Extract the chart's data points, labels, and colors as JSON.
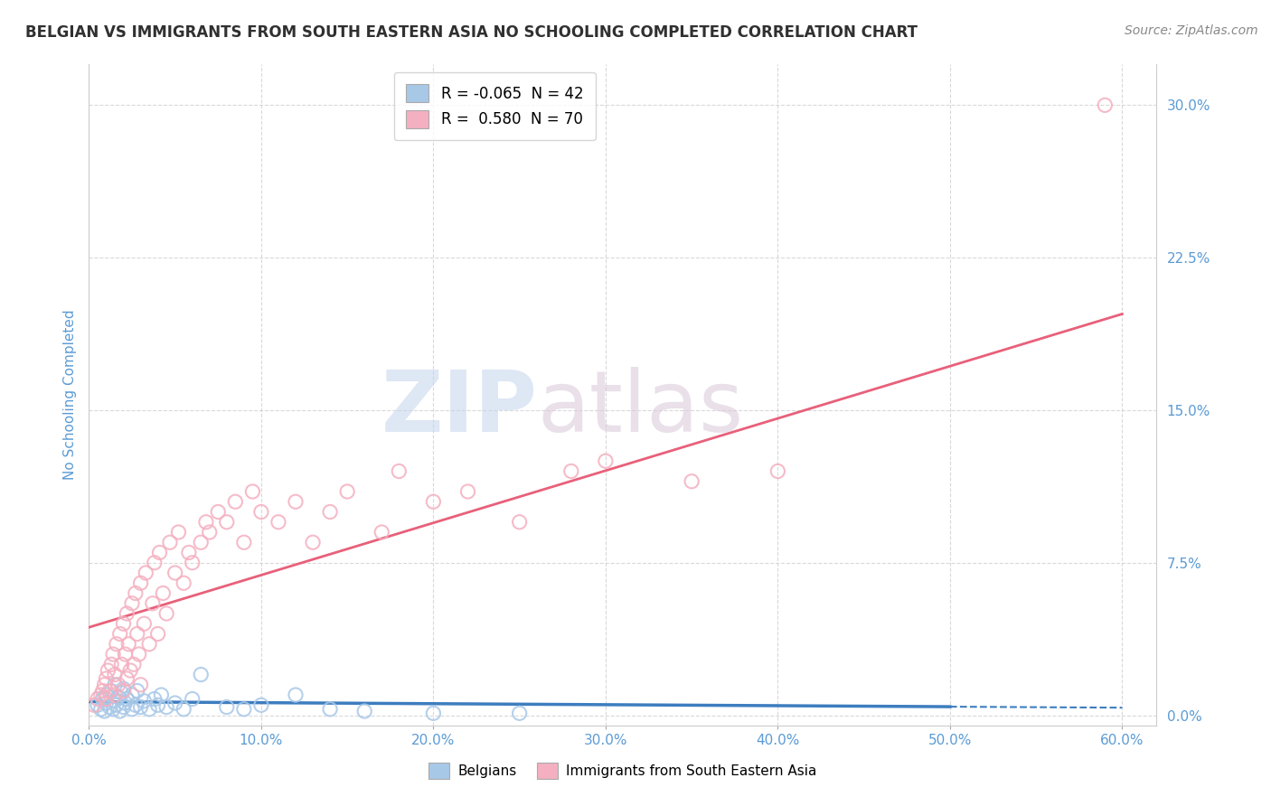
{
  "title": "BELGIAN VS IMMIGRANTS FROM SOUTH EASTERN ASIA NO SCHOOLING COMPLETED CORRELATION CHART",
  "source": "Source: ZipAtlas.com",
  "ylabel": "No Schooling Completed",
  "xlim": [
    0.0,
    0.62
  ],
  "ylim": [
    -0.005,
    0.32
  ],
  "x_ticks": [
    0.0,
    0.1,
    0.2,
    0.3,
    0.4,
    0.5,
    0.6
  ],
  "x_tick_labels": [
    "0.0%",
    "10.0%",
    "20.0%",
    "30.0%",
    "40.0%",
    "50.0%",
    "60.0%"
  ],
  "y_ticks": [
    0.0,
    0.075,
    0.15,
    0.225,
    0.3
  ],
  "y_tick_labels": [
    "0.0%",
    "7.5%",
    "15.0%",
    "22.5%",
    "30.0%"
  ],
  "belgian_color": "#a8c8e8",
  "immigrant_color": "#f4b0c0",
  "belgian_line_color": "#3d7dbf",
  "immigrant_line_color": "#e8607a",
  "legend_R_belgian": "-0.065",
  "legend_N_belgian": "42",
  "legend_R_immigrant": "0.580",
  "legend_N_immigrant": "70",
  "background_color": "#ffffff",
  "grid_color": "#d0d0d0",
  "title_color": "#303030",
  "axis_label_color": "#5b9bd5",
  "tick_label_color": "#5b9bd5",
  "belgian_x": [
    0.005,
    0.007,
    0.008,
    0.009,
    0.01,
    0.01,
    0.012,
    0.013,
    0.014,
    0.015,
    0.015,
    0.016,
    0.017,
    0.018,
    0.019,
    0.02,
    0.02,
    0.021,
    0.022,
    0.025,
    0.025,
    0.027,
    0.028,
    0.03,
    0.032,
    0.035,
    0.038,
    0.04,
    0.042,
    0.045,
    0.05,
    0.055,
    0.06,
    0.065,
    0.08,
    0.09,
    0.1,
    0.12,
    0.14,
    0.16,
    0.2,
    0.25
  ],
  "belgian_y": [
    0.005,
    0.003,
    0.008,
    0.002,
    0.006,
    0.01,
    0.004,
    0.012,
    0.003,
    0.007,
    0.015,
    0.005,
    0.009,
    0.002,
    0.011,
    0.004,
    0.013,
    0.006,
    0.008,
    0.003,
    0.01,
    0.005,
    0.012,
    0.004,
    0.007,
    0.003,
    0.008,
    0.005,
    0.01,
    0.004,
    0.006,
    0.003,
    0.008,
    0.02,
    0.004,
    0.003,
    0.005,
    0.01,
    0.003,
    0.002,
    0.001,
    0.001
  ],
  "immigrant_x": [
    0.003,
    0.005,
    0.007,
    0.008,
    0.009,
    0.01,
    0.01,
    0.011,
    0.012,
    0.013,
    0.014,
    0.015,
    0.015,
    0.016,
    0.017,
    0.018,
    0.019,
    0.02,
    0.02,
    0.021,
    0.022,
    0.022,
    0.023,
    0.024,
    0.025,
    0.026,
    0.027,
    0.028,
    0.029,
    0.03,
    0.03,
    0.032,
    0.033,
    0.035,
    0.037,
    0.038,
    0.04,
    0.041,
    0.043,
    0.045,
    0.047,
    0.05,
    0.052,
    0.055,
    0.058,
    0.06,
    0.065,
    0.068,
    0.07,
    0.075,
    0.08,
    0.085,
    0.09,
    0.095,
    0.1,
    0.11,
    0.12,
    0.13,
    0.14,
    0.15,
    0.17,
    0.18,
    0.2,
    0.22,
    0.25,
    0.28,
    0.3,
    0.35,
    0.4,
    0.59
  ],
  "immigrant_y": [
    0.005,
    0.008,
    0.01,
    0.012,
    0.015,
    0.008,
    0.018,
    0.022,
    0.012,
    0.025,
    0.03,
    0.01,
    0.02,
    0.035,
    0.015,
    0.04,
    0.025,
    0.012,
    0.045,
    0.03,
    0.018,
    0.05,
    0.035,
    0.022,
    0.055,
    0.025,
    0.06,
    0.04,
    0.03,
    0.015,
    0.065,
    0.045,
    0.07,
    0.035,
    0.055,
    0.075,
    0.04,
    0.08,
    0.06,
    0.05,
    0.085,
    0.07,
    0.09,
    0.065,
    0.08,
    0.075,
    0.085,
    0.095,
    0.09,
    0.1,
    0.095,
    0.105,
    0.085,
    0.11,
    0.1,
    0.095,
    0.105,
    0.085,
    0.1,
    0.11,
    0.09,
    0.12,
    0.105,
    0.11,
    0.095,
    0.12,
    0.125,
    0.115,
    0.12,
    0.3
  ],
  "belgian_line_start_x": 0.0,
  "belgian_line_end_x": 0.5,
  "belgian_line_dash_start_x": 0.5,
  "belgian_line_dash_end_x": 0.6,
  "immigrant_line_start_x": 0.0,
  "immigrant_line_end_x": 0.6
}
